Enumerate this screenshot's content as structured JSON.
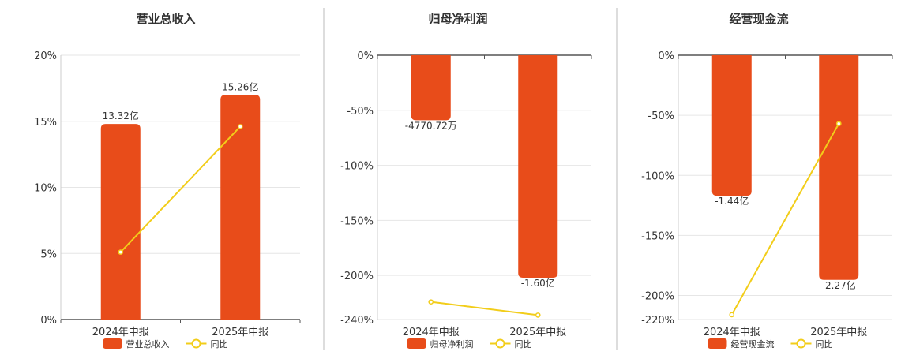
{
  "colors": {
    "bar": "#E84C1A",
    "line": "#F2CD1A",
    "grid": "#E6E6E6",
    "axis": "#555555",
    "divider": "#BBBBBB"
  },
  "chart_data": [
    {
      "type": "bar",
      "title": "营业总收入",
      "categories": [
        "2024年中报",
        "2025年中报"
      ],
      "bar_series": {
        "name": "营业总收入",
        "values": [
          14.8,
          17.0
        ],
        "data_labels": [
          "13.32亿",
          "15.26亿"
        ]
      },
      "line_series": {
        "name": "同比",
        "values": [
          5.1,
          14.6
        ]
      },
      "ylim": [
        0,
        20
      ],
      "yticks": [
        0,
        5,
        10,
        15,
        20
      ],
      "ytick_labels": [
        "0%",
        "5%",
        "10%",
        "15%",
        "20%"
      ],
      "grid": true,
      "legend": "bottom-center"
    },
    {
      "type": "bar",
      "title": "归母净利润",
      "categories": [
        "2024年中报",
        "2025年中报"
      ],
      "bar_series": {
        "name": "归母净利润",
        "values": [
          -59,
          -202
        ],
        "data_labels": [
          "-4770.72万",
          "-1.60亿"
        ]
      },
      "line_series": {
        "name": "同比",
        "values": [
          -224,
          -236
        ]
      },
      "ylim": [
        -240,
        0
      ],
      "yticks": [
        0,
        -50,
        -100,
        -150,
        -200,
        -240
      ],
      "ytick_labels": [
        "0%",
        "-50%",
        "-100%",
        "-150%",
        "-200%",
        "-240%"
      ],
      "grid": true,
      "legend": "bottom-center"
    },
    {
      "type": "bar",
      "title": "经营现金流",
      "categories": [
        "2024年中报",
        "2025年中报"
      ],
      "bar_series": {
        "name": "经营现金流",
        "values": [
          -117,
          -187
        ],
        "data_labels": [
          "-1.44亿",
          "-2.27亿"
        ]
      },
      "line_series": {
        "name": "同比",
        "values": [
          -216,
          -57
        ]
      },
      "ylim": [
        -220,
        0
      ],
      "yticks": [
        0,
        -50,
        -100,
        -150,
        -200,
        -220
      ],
      "ytick_labels": [
        "0%",
        "-50%",
        "-100%",
        "-150%",
        "-200%",
        "-220%"
      ],
      "grid": true,
      "legend": "bottom-center"
    }
  ]
}
